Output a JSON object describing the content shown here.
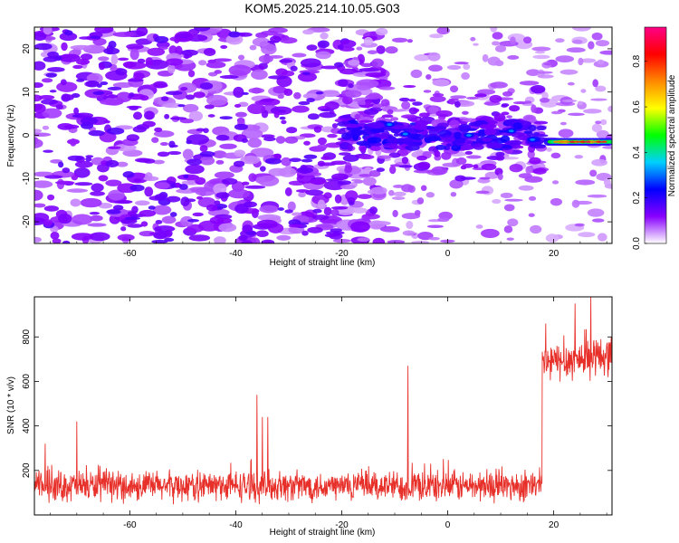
{
  "title": "KOM5.2025.214.10.05.G03",
  "colors": {
    "frame": "#000000",
    "snr_line": "#e8302a",
    "spectrogram_base": "#ffffff"
  },
  "chart_data": [
    {
      "type": "heatmap",
      "id": "spectrogram",
      "xlabel": "Height of straight line (km)",
      "ylabel": "Frequency (Hz)",
      "xlim": [
        -78,
        31
      ],
      "ylim": [
        -25,
        25
      ],
      "x_ticks": [
        -60,
        -40,
        -20,
        0,
        20
      ],
      "x_tick_labels": [
        "-60",
        "-40",
        "-20",
        "0",
        "20"
      ],
      "y_ticks": [
        -20,
        -10,
        0,
        10,
        20
      ],
      "y_tick_labels": [
        "-20",
        "-10",
        "0",
        "10",
        "20"
      ],
      "colormap": "rainbow (violet-blue-cyan-green-yellow-red-magenta)",
      "description_of_features": {
        "scattered_noise_region_x": [
          -78,
          -18
        ],
        "coherent_band_center_freq_hz": 0,
        "coherent_band_x": [
          -20,
          18
        ],
        "strong_signal_x": [
          19,
          31
        ],
        "strong_signal_freq_hz": -1.5
      }
    },
    {
      "type": "colorbar",
      "id": "spectrogram-colorbar",
      "label": "Normalized spectral amplitude",
      "range": [
        0,
        0.95
      ],
      "ticks": [
        0.0,
        0.2,
        0.4,
        0.6,
        0.8
      ],
      "tick_labels": [
        "0.0",
        "0.2",
        "0.4",
        "0.6",
        "0.8"
      ],
      "gradient_stops": [
        "#ffffff",
        "#8800ff",
        "#0000ff",
        "#00d0ff",
        "#00ff00",
        "#ffff00",
        "#ff8800",
        "#ff0000",
        "#ff0088"
      ]
    },
    {
      "type": "line",
      "id": "snr",
      "xlabel": "Height of straight line (km)",
      "ylabel": "SNR (10 * v/v)",
      "xlim": [
        -78,
        31
      ],
      "ylim": [
        0,
        980
      ],
      "x_ticks": [
        -60,
        -40,
        -20,
        0,
        20
      ],
      "x_tick_labels": [
        "-60",
        "-40",
        "-20",
        "0",
        "20"
      ],
      "y_ticks": [
        200,
        400,
        600,
        800
      ],
      "y_tick_labels": [
        "200",
        "400",
        "600",
        "800"
      ],
      "segments": [
        {
          "x_start": -78,
          "x_end": 17.8,
          "mean": 130,
          "spread": 70,
          "rise_slope": 0
        },
        {
          "x_start": 17.8,
          "x_end": 31,
          "mean": 680,
          "spread": 90,
          "rise_slope": 3
        }
      ],
      "spikes": [
        {
          "x": -7.5,
          "y": 670
        },
        {
          "x": -36,
          "y": 540
        },
        {
          "x": -35,
          "y": 440
        },
        {
          "x": -34,
          "y": 440
        },
        {
          "x": -70,
          "y": 420
        },
        {
          "x": -76,
          "y": 320
        },
        {
          "x": 24,
          "y": 950
        },
        {
          "x": 27,
          "y": 980
        },
        {
          "x": 18.5,
          "y": 860
        }
      ]
    }
  ]
}
